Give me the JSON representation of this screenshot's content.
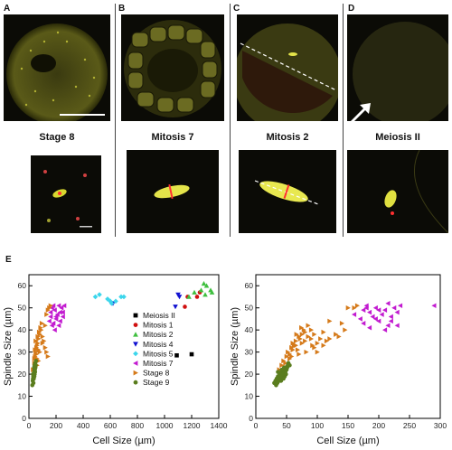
{
  "panels": [
    {
      "letter": "A",
      "caption": "Stage 8"
    },
    {
      "letter": "B",
      "caption": "Mitosis 7"
    },
    {
      "letter": "C",
      "caption": "Mitosis 2"
    },
    {
      "letter": "D",
      "caption": "Meiosis II"
    }
  ],
  "panel_e_letter": "E",
  "colors": {
    "Meiosis II": "#000000",
    "Mitosis 1": "#d01010",
    "Mitosis 2": "#3fbf3f",
    "Mitosis 4": "#1010d0",
    "Mitosis 5": "#3cd6ec",
    "Mitosis 7": "#c21bd0",
    "Stage 8": "#d57a1a",
    "Stage 9": "#5a7d1e"
  },
  "chart_data": [
    {
      "type": "scatter",
      "xlabel": "Cell Size (µm)",
      "ylabel": "Spindle Size (µm)",
      "xlim": [
        0,
        1400
      ],
      "ylim": [
        0,
        65
      ],
      "xticks": [
        0,
        200,
        400,
        600,
        800,
        1000,
        1200,
        1400
      ],
      "yticks": [
        0,
        10,
        20,
        30,
        40,
        50,
        60
      ],
      "legend": "inside-right",
      "series": [
        {
          "name": "Meiosis II",
          "marker": "square",
          "x": [
            1090,
            1200
          ],
          "y": [
            28.5,
            29
          ]
        },
        {
          "name": "Mitosis 1",
          "marker": "circle",
          "x": [
            1150,
            1170,
            1240,
            1260
          ],
          "y": [
            50.5,
            55,
            55,
            57
          ]
        },
        {
          "name": "Mitosis 2",
          "marker": "triangle-up",
          "x": [
            1180,
            1220,
            1270,
            1290,
            1310,
            1340,
            1350,
            1300
          ],
          "y": [
            55,
            57,
            58,
            61,
            60,
            58,
            57,
            56
          ]
        },
        {
          "name": "Mitosis 4",
          "marker": "triangle-down",
          "x": [
            620,
            1080,
            1100,
            1110
          ],
          "y": [
            52,
            50.5,
            56,
            55
          ]
        },
        {
          "name": "Mitosis 5",
          "marker": "diamond",
          "x": [
            490,
            520,
            580,
            610,
            640,
            680,
            700,
            600
          ],
          "y": [
            55,
            56,
            54,
            52,
            53,
            55,
            55,
            53
          ]
        },
        {
          "name": "Mitosis 7",
          "marker": "triangle-left",
          "x": [
            150,
            160,
            170,
            180,
            190,
            200,
            210,
            220,
            230,
            240,
            250,
            260,
            170,
            190,
            200,
            230,
            250,
            160,
            180,
            220
          ],
          "y": [
            44,
            48,
            50,
            51,
            49,
            46,
            47,
            51,
            48,
            50,
            46,
            51,
            42,
            40,
            45,
            44,
            48,
            46,
            43,
            42
          ]
        },
        {
          "name": "Stage 8",
          "marker": "triangle-right",
          "x": [
            30,
            40,
            45,
            50,
            55,
            60,
            65,
            70,
            80,
            90,
            100,
            110,
            120,
            130,
            140,
            50,
            60,
            70,
            80,
            100,
            120,
            60,
            70,
            55,
            65,
            75,
            85,
            95,
            45,
            40,
            150,
            160,
            140,
            130
          ],
          "y": [
            22,
            25,
            28,
            30,
            32,
            27,
            34,
            36,
            38,
            40,
            37,
            35,
            32,
            30,
            28,
            35,
            33,
            31,
            30,
            34,
            42,
            24,
            26,
            29,
            37,
            39,
            41,
            43,
            31,
            27,
            50,
            51,
            49,
            47
          ]
        },
        {
          "name": "Stage 9",
          "marker": "circle",
          "x": [
            25,
            28,
            30,
            32,
            35,
            38,
            40,
            42,
            45,
            48,
            50,
            33,
            36,
            40,
            44,
            30,
            38,
            42,
            46,
            52
          ],
          "y": [
            15,
            17,
            18,
            19,
            20,
            21,
            22,
            20,
            21,
            23,
            24,
            16,
            18,
            19,
            22,
            20,
            23,
            24,
            25,
            26
          ]
        }
      ]
    },
    {
      "type": "scatter",
      "xlabel": "Cell Size (µm)",
      "ylabel": "Spindle Size (µm)",
      "xlim": [
        0,
        300
      ],
      "ylim": [
        0,
        65
      ],
      "xticks": [
        0,
        50,
        100,
        150,
        200,
        250,
        300
      ],
      "yticks": [
        0,
        10,
        20,
        30,
        40,
        50,
        60
      ],
      "series": [
        {
          "name": "Mitosis 7",
          "marker": "triangle-left",
          "x": [
            160,
            170,
            175,
            180,
            185,
            190,
            195,
            200,
            205,
            210,
            215,
            220,
            225,
            230,
            235,
            175,
            185,
            195,
            210,
            220,
            230,
            290,
            200,
            215,
            180
          ],
          "y": [
            47,
            45,
            49,
            51,
            48,
            46,
            50,
            44,
            47,
            49,
            42,
            46,
            50,
            48,
            51,
            43,
            41,
            45,
            40,
            44,
            42,
            51,
            49,
            52,
            50
          ]
        },
        {
          "name": "Stage 8",
          "marker": "triangle-right",
          "x": [
            38,
            42,
            45,
            48,
            50,
            52,
            55,
            58,
            60,
            62,
            65,
            68,
            70,
            72,
            75,
            78,
            80,
            85,
            90,
            95,
            100,
            105,
            110,
            115,
            120,
            130,
            140,
            150,
            160,
            165,
            55,
            60,
            65,
            70,
            75,
            80,
            85,
            90,
            95,
            100,
            110,
            50,
            58,
            66,
            74,
            82,
            92,
            120,
            135,
            145
          ],
          "y": [
            22,
            24,
            26,
            25,
            28,
            30,
            29,
            32,
            34,
            33,
            35,
            31,
            37,
            36,
            38,
            40,
            39,
            37,
            36,
            38,
            34,
            36,
            33,
            35,
            36,
            38,
            43,
            50,
            50,
            51,
            27,
            31,
            33,
            29,
            34,
            35,
            42,
            40,
            32,
            30,
            39,
            23,
            28,
            38,
            41,
            30,
            33,
            44,
            37,
            40
          ]
        },
        {
          "name": "Stage 9",
          "marker": "circle",
          "x": [
            30,
            32,
            34,
            35,
            36,
            38,
            40,
            41,
            42,
            43,
            44,
            45,
            46,
            47,
            48,
            50,
            52,
            33,
            37,
            39,
            41,
            43,
            45,
            47,
            49,
            51,
            36,
            40,
            44,
            48,
            53,
            55,
            38,
            42,
            46
          ],
          "y": [
            16,
            17,
            18,
            16,
            19,
            17,
            20,
            18,
            21,
            19,
            22,
            20,
            21,
            19,
            23,
            22,
            24,
            15,
            18,
            20,
            17,
            19,
            18,
            22,
            20,
            23,
            21,
            19,
            20,
            21,
            25,
            24,
            17,
            22,
            23
          ]
        }
      ]
    }
  ]
}
